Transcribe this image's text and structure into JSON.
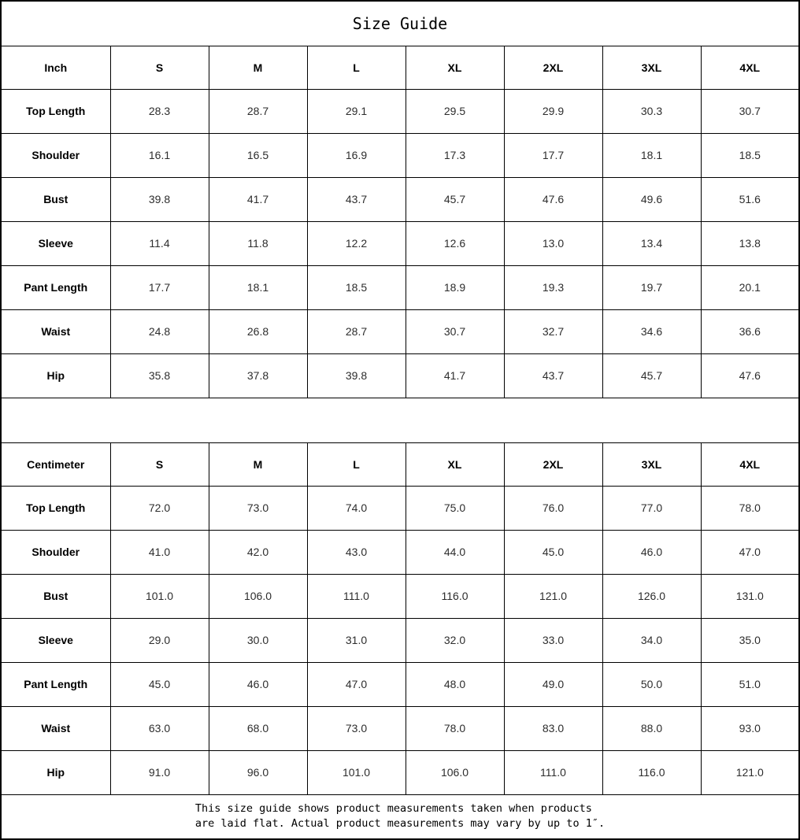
{
  "title": "Size Guide",
  "columns": [
    "S",
    "M",
    "L",
    "XL",
    "2XL",
    "3XL",
    "4XL"
  ],
  "tables": [
    {
      "unit_label": "Inch",
      "rows": [
        {
          "label": "Top Length",
          "values": [
            "28.3",
            "28.7",
            "29.1",
            "29.5",
            "29.9",
            "30.3",
            "30.7"
          ]
        },
        {
          "label": "Shoulder",
          "values": [
            "16.1",
            "16.5",
            "16.9",
            "17.3",
            "17.7",
            "18.1",
            "18.5"
          ]
        },
        {
          "label": "Bust",
          "values": [
            "39.8",
            "41.7",
            "43.7",
            "45.7",
            "47.6",
            "49.6",
            "51.6"
          ]
        },
        {
          "label": "Sleeve",
          "values": [
            "11.4",
            "11.8",
            "12.2",
            "12.6",
            "13.0",
            "13.4",
            "13.8"
          ]
        },
        {
          "label": "Pant Length",
          "values": [
            "17.7",
            "18.1",
            "18.5",
            "18.9",
            "19.3",
            "19.7",
            "20.1"
          ]
        },
        {
          "label": "Waist",
          "values": [
            "24.8",
            "26.8",
            "28.7",
            "30.7",
            "32.7",
            "34.6",
            "36.6"
          ]
        },
        {
          "label": "Hip",
          "values": [
            "35.8",
            "37.8",
            "39.8",
            "41.7",
            "43.7",
            "45.7",
            "47.6"
          ]
        }
      ]
    },
    {
      "unit_label": "Centimeter",
      "rows": [
        {
          "label": "Top Length",
          "values": [
            "72.0",
            "73.0",
            "74.0",
            "75.0",
            "76.0",
            "77.0",
            "78.0"
          ]
        },
        {
          "label": "Shoulder",
          "values": [
            "41.0",
            "42.0",
            "43.0",
            "44.0",
            "45.0",
            "46.0",
            "47.0"
          ]
        },
        {
          "label": "Bust",
          "values": [
            "101.0",
            "106.0",
            "111.0",
            "116.0",
            "121.0",
            "126.0",
            "131.0"
          ]
        },
        {
          "label": "Sleeve",
          "values": [
            "29.0",
            "30.0",
            "31.0",
            "32.0",
            "33.0",
            "34.0",
            "35.0"
          ]
        },
        {
          "label": "Pant Length",
          "values": [
            "45.0",
            "46.0",
            "47.0",
            "48.0",
            "49.0",
            "50.0",
            "51.0"
          ]
        },
        {
          "label": "Waist",
          "values": [
            "63.0",
            "68.0",
            "73.0",
            "78.0",
            "83.0",
            "88.0",
            "93.0"
          ]
        },
        {
          "label": "Hip",
          "values": [
            "91.0",
            "96.0",
            "101.0",
            "106.0",
            "111.0",
            "116.0",
            "121.0"
          ]
        }
      ]
    }
  ],
  "footer": {
    "line1": "This size guide shows product measurements taken when products",
    "line2": "are laid flat. Actual product measurements may vary by up to 1″."
  },
  "colors": {
    "background": "#ffffff",
    "border": "#000000",
    "header_text": "#000000",
    "cell_text": "#2d2d2d"
  }
}
